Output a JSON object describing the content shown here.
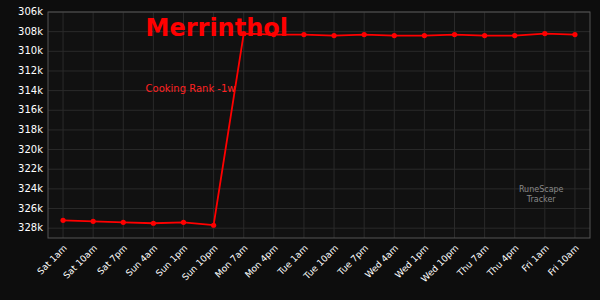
{
  "chart_data": {
    "type": "line",
    "title": "Merrinthol",
    "subtitle": "Cooking Rank -1w",
    "categories": [
      "Sat 1am",
      "Sat 10am",
      "Sat 7pm",
      "Sun 4am",
      "Sun 1pm",
      "Sun 10pm",
      "Mon 7am",
      "Mon 4pm",
      "Tue 1am",
      "Tue 10am",
      "Tue 7pm",
      "Wed 4am",
      "Wed 1pm",
      "Wed 10pm",
      "Thu 7am",
      "Thu 4pm",
      "Fri 1am",
      "Fri 10am"
    ],
    "values": [
      327200,
      327300,
      327400,
      327500,
      327400,
      327700,
      308200,
      308300,
      308300,
      308400,
      308300,
      308400,
      308400,
      308300,
      308400,
      308400,
      308200,
      308300
    ],
    "color": "#ff0000",
    "marker": "circle",
    "ylim": [
      329000,
      306000
    ],
    "yticks": [
      {
        "value": 306000,
        "label": "306k"
      },
      {
        "value": 308000,
        "label": "308k"
      },
      {
        "value": 310000,
        "label": "310k"
      },
      {
        "value": 312000,
        "label": "312k"
      },
      {
        "value": 314000,
        "label": "314k"
      },
      {
        "value": 316000,
        "label": "316k"
      },
      {
        "value": 318000,
        "label": "318k"
      },
      {
        "value": 320000,
        "label": "320k"
      },
      {
        "value": 322000,
        "label": "322k"
      },
      {
        "value": 324000,
        "label": "324k"
      },
      {
        "value": 326000,
        "label": "326k"
      },
      {
        "value": 328000,
        "label": "328k"
      }
    ],
    "grid": true,
    "annotations": [
      "RuneScape\nTracker"
    ]
  }
}
